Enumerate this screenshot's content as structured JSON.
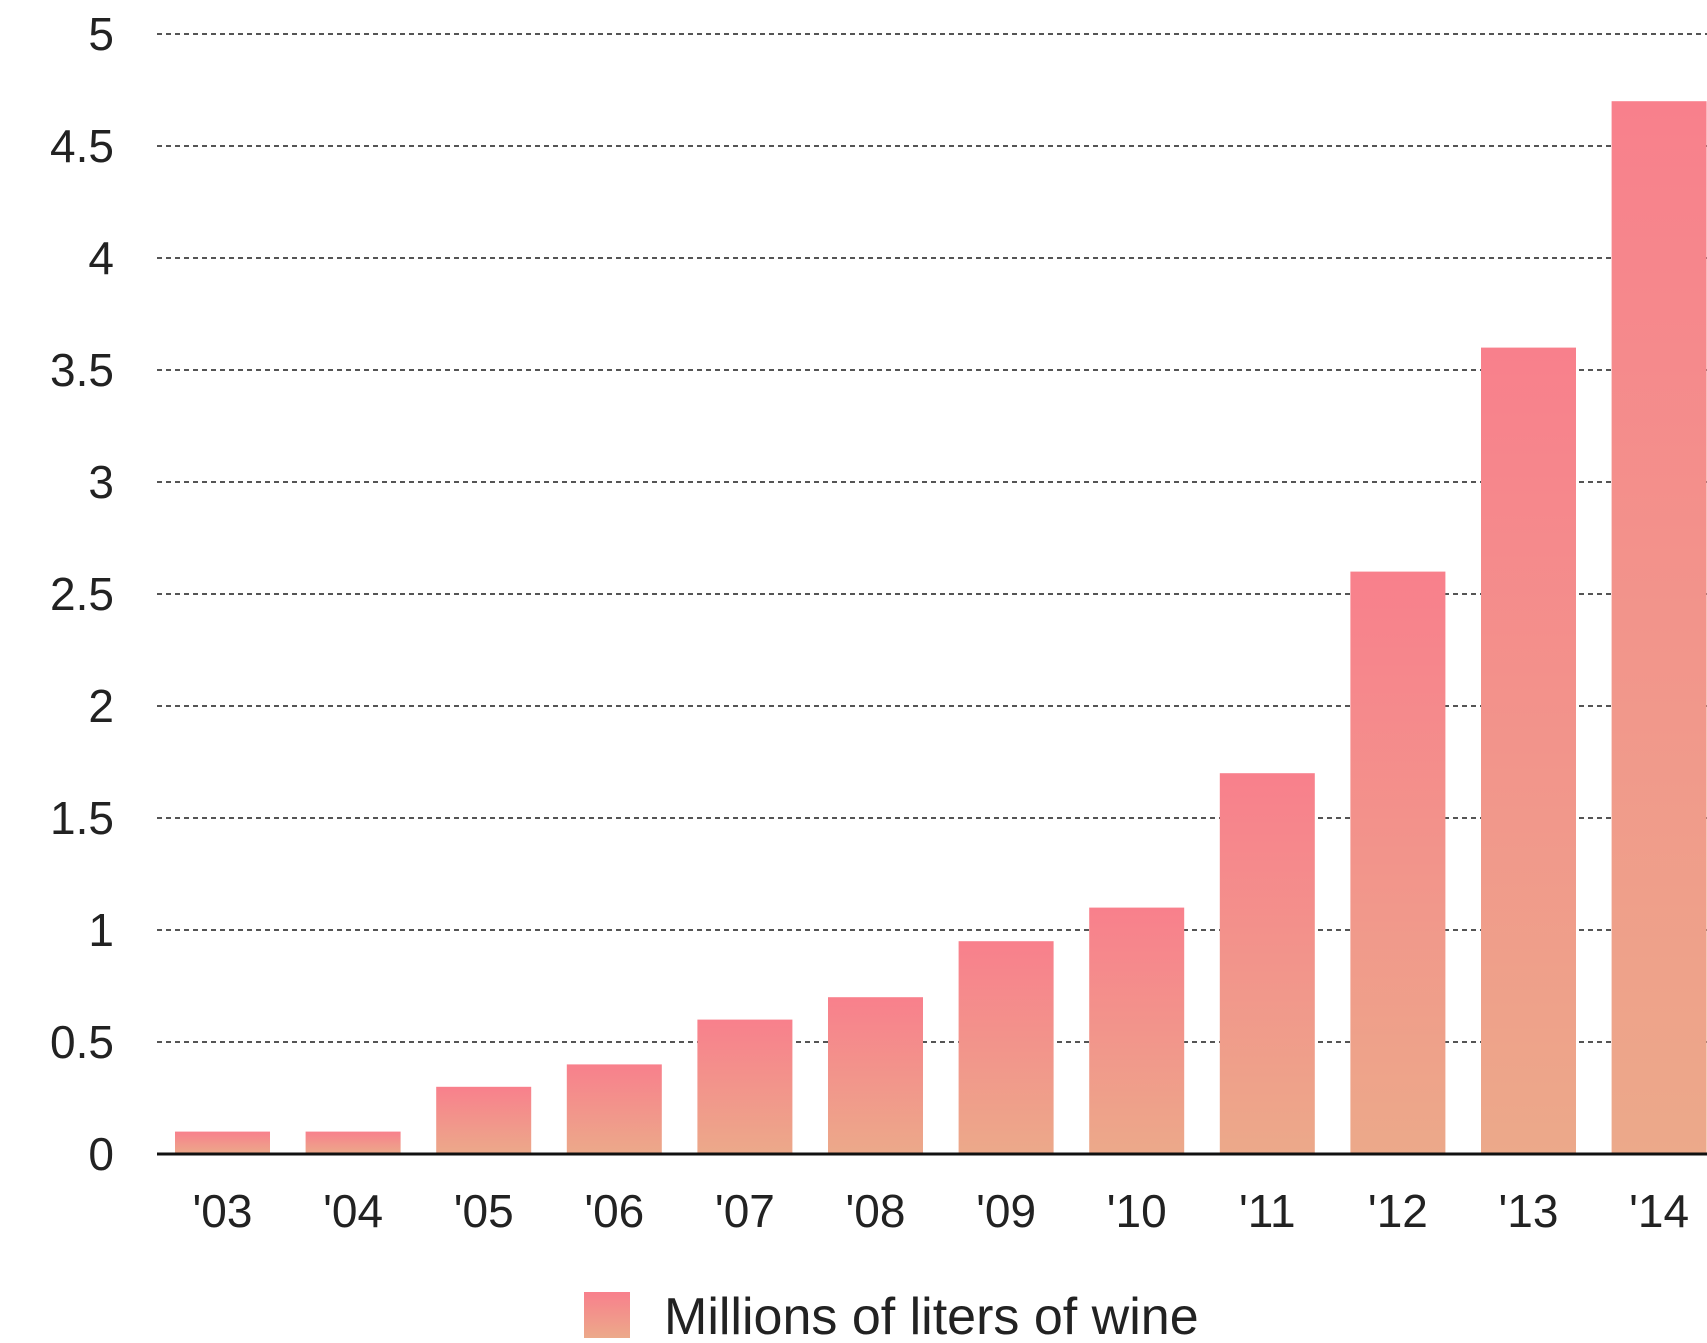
{
  "chart_data": {
    "type": "bar",
    "categories": [
      "'03",
      "'04",
      "'05",
      "'06",
      "'07",
      "'08",
      "'09",
      "'10",
      "'11",
      "'12",
      "'13",
      "'14"
    ],
    "series": [
      {
        "name": "Millions of liters of wine",
        "values": [
          0.1,
          0.1,
          0.3,
          0.4,
          0.6,
          0.7,
          0.95,
          1.1,
          1.7,
          2.6,
          3.6,
          4.7
        ]
      }
    ],
    "y_ticks": [
      "0",
      "0.5",
      "1",
      "1.5",
      "2",
      "2.5",
      "3",
      "3.5",
      "4",
      "4.5",
      "5"
    ],
    "ylim": [
      0,
      5
    ],
    "grid": true,
    "legend_position": "bottom-center",
    "colors": {
      "bar_top": "#f8808c",
      "bar_bottom": "#eca98a",
      "grid": "#555555",
      "axis": "#111111"
    }
  }
}
